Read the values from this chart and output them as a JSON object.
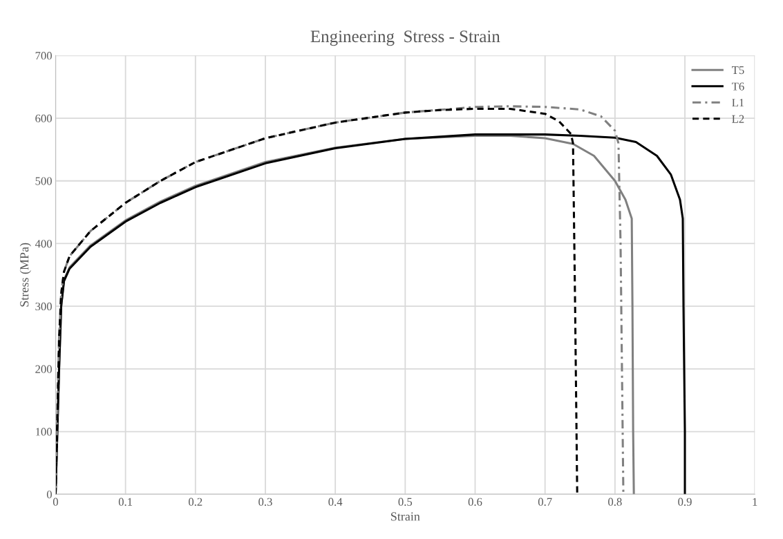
{
  "chart_data": {
    "type": "line",
    "title": "Engineering  Stress - Strain",
    "xlabel": "Strain",
    "ylabel": "Stress (MPa)",
    "xlim": [
      0,
      1
    ],
    "ylim": [
      0,
      700
    ],
    "xticks": [
      0,
      0.1,
      0.2,
      0.3,
      0.4,
      0.5,
      0.6,
      0.7,
      0.8,
      0.9,
      1
    ],
    "yticks": [
      0,
      100,
      200,
      300,
      400,
      500,
      600,
      700
    ],
    "grid": true,
    "legend": "top right",
    "marker": "none",
    "series": [
      {
        "name": "T5",
        "color": "#808080",
        "line_style": "solid",
        "x": [
          0,
          0.005,
          0.008,
          0.012,
          0.02,
          0.05,
          0.1,
          0.15,
          0.2,
          0.3,
          0.4,
          0.5,
          0.6,
          0.65,
          0.7,
          0.74,
          0.77,
          0.8,
          0.815,
          0.824,
          0.825,
          0.826,
          0.827
        ],
        "values": [
          0,
          200,
          300,
          342,
          362,
          397,
          437,
          467,
          492,
          530,
          553,
          567,
          572,
          572,
          568,
          559,
          540,
          500,
          470,
          440,
          300,
          100,
          0
        ]
      },
      {
        "name": "T6",
        "color": "#000000",
        "line_style": "solid",
        "x": [
          0,
          0.005,
          0.008,
          0.012,
          0.02,
          0.05,
          0.1,
          0.15,
          0.2,
          0.3,
          0.4,
          0.5,
          0.6,
          0.7,
          0.75,
          0.8,
          0.83,
          0.86,
          0.88,
          0.893,
          0.897,
          0.898,
          0.9,
          0.9
        ],
        "values": [
          0,
          200,
          300,
          340,
          360,
          395,
          435,
          465,
          490,
          528,
          552,
          567,
          574,
          574,
          572,
          569,
          562,
          540,
          510,
          470,
          440,
          300,
          100,
          0
        ]
      },
      {
        "name": "L1",
        "color": "#808080",
        "line_style": "dashdot",
        "x": [
          0,
          0.005,
          0.008,
          0.012,
          0.02,
          0.05,
          0.1,
          0.15,
          0.2,
          0.3,
          0.4,
          0.5,
          0.6,
          0.65,
          0.7,
          0.75,
          0.78,
          0.8,
          0.805,
          0.808,
          0.81,
          0.812
        ],
        "values": [
          0,
          250,
          320,
          355,
          380,
          420,
          465,
          500,
          530,
          568,
          593,
          609,
          618,
          619,
          618,
          614,
          603,
          580,
          560,
          400,
          200,
          0
        ]
      },
      {
        "name": "L2",
        "color": "#000000",
        "line_style": "dashed",
        "x": [
          0,
          0.005,
          0.008,
          0.012,
          0.02,
          0.05,
          0.1,
          0.15,
          0.2,
          0.3,
          0.4,
          0.5,
          0.55,
          0.6,
          0.65,
          0.7,
          0.72,
          0.737,
          0.74,
          0.743,
          0.746
        ],
        "values": [
          0,
          250,
          320,
          355,
          380,
          420,
          465,
          500,
          530,
          568,
          593,
          609,
          613,
          615,
          615,
          607,
          595,
          575,
          560,
          300,
          0
        ]
      }
    ]
  }
}
